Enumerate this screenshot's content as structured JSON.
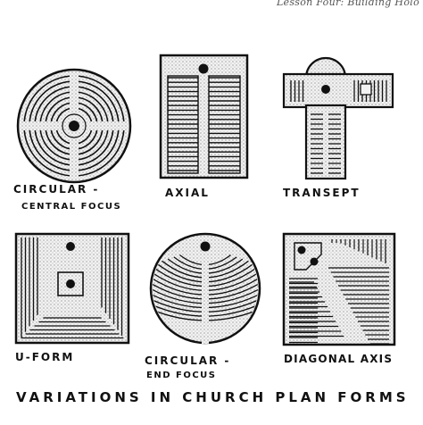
{
  "header": {
    "note": "Lesson Four: Building Holo"
  },
  "plans": [
    {
      "id": "circular-central",
      "label": "CIRCULAR -",
      "sublabel": "CENTRAL FOCUS"
    },
    {
      "id": "axial",
      "label": "AXIAL",
      "sublabel": ""
    },
    {
      "id": "transept",
      "label": "TRANSEPT",
      "sublabel": ""
    },
    {
      "id": "u-form",
      "label": "U-FORM",
      "sublabel": ""
    },
    {
      "id": "circular-end",
      "label": "CIRCULAR -",
      "sublabel": "END FOCUS"
    },
    {
      "id": "diagonal-axis",
      "label": "DIAGONAL AXIS",
      "sublabel": ""
    }
  ],
  "caption": "VARIATIONS IN CHURCH PLAN FORMS"
}
